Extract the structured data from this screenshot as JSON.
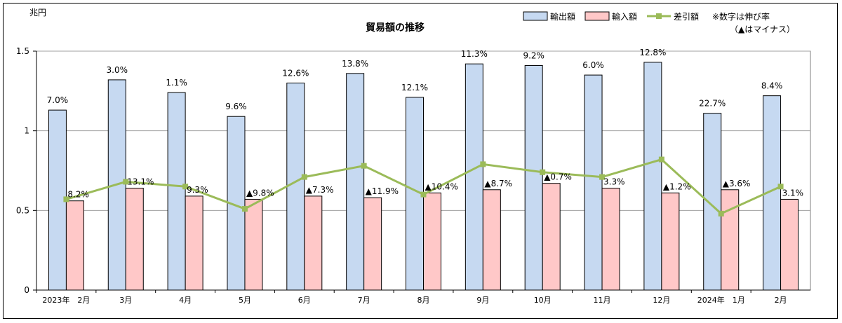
{
  "chart_data": {
    "type": "bar",
    "title": "貿易額の推移",
    "ylabel": "兆円",
    "ylim": [
      0,
      1.5
    ],
    "yticks": [
      {
        "value": 0,
        "label": "0"
      },
      {
        "value": 0.5,
        "label": "0.5"
      },
      {
        "value": 1,
        "label": "1"
      },
      {
        "value": 1.5,
        "label": "1.5"
      }
    ],
    "grid": true,
    "legend_position": "top-right",
    "note_line1": "※数字は伸び率",
    "note_line2": "（▲はマイナス）",
    "categories": [
      "2023年　2月",
      "3月",
      "4月",
      "5月",
      "6月",
      "7月",
      "8月",
      "9月",
      "10月",
      "11月",
      "12月",
      "2024年　1月",
      "2月"
    ],
    "series": [
      {
        "name": "輸出額",
        "type": "bar",
        "color": "#c6d9f1",
        "values": [
          1.13,
          1.32,
          1.24,
          1.09,
          1.3,
          1.36,
          1.21,
          1.42,
          1.41,
          1.35,
          1.43,
          1.11,
          1.22
        ],
        "labels": [
          "7.0%",
          "3.0%",
          "1.1%",
          "9.6%",
          "12.6%",
          "13.8%",
          "12.1%",
          "11.3%",
          "9.2%",
          "6.0%",
          "12.8%",
          "22.7%",
          "8.4%"
        ]
      },
      {
        "name": "輸入額",
        "type": "bar",
        "color": "#ffc8c8",
        "values": [
          0.56,
          0.64,
          0.59,
          0.57,
          0.59,
          0.58,
          0.61,
          0.63,
          0.67,
          0.64,
          0.61,
          0.63,
          0.57
        ],
        "labels": [
          "8.2%",
          "13.1%",
          "9.3%",
          "▲9.8%",
          "▲7.3%",
          "▲11.9%",
          "▲10.4%",
          "▲8.7%",
          "▲0.7%",
          "3.3%",
          "▲1.2%",
          "▲3.6%",
          "3.1%"
        ]
      },
      {
        "name": "差引額",
        "type": "line",
        "color": "#9bbb59",
        "values": [
          0.57,
          0.68,
          0.65,
          0.51,
          0.71,
          0.78,
          0.6,
          0.79,
          0.74,
          0.71,
          0.82,
          0.48,
          0.65
        ]
      }
    ]
  }
}
